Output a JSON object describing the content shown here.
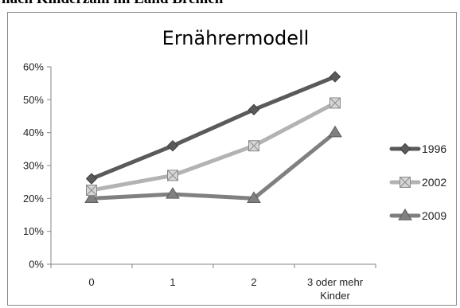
{
  "page": {
    "heading": "nach Kinderzahl im Land Bremen"
  },
  "chart_data": {
    "type": "line",
    "title": "Ernährermodell",
    "categories": [
      [
        "0"
      ],
      [
        "1"
      ],
      [
        "2"
      ],
      [
        "3 oder mehr",
        "Kinder"
      ]
    ],
    "ylim": [
      0,
      0.6
    ],
    "yticks": [
      0,
      0.1,
      0.2,
      0.3,
      0.4,
      0.5,
      0.6
    ],
    "ytick_labels": [
      "0%",
      "10%",
      "20%",
      "30%",
      "40%",
      "50%",
      "60%"
    ],
    "grid": false,
    "legend_position": "right",
    "series": [
      {
        "name": "1996",
        "values": [
          0.26,
          0.36,
          0.47,
          0.57
        ],
        "color": "#5a5a5a",
        "marker": "diamond"
      },
      {
        "name": "2002",
        "values": [
          0.225,
          0.27,
          0.36,
          0.49
        ],
        "color": "#b3b3b3",
        "marker": "square"
      },
      {
        "name": "2009",
        "values": [
          0.2,
          0.213,
          0.2,
          0.4
        ],
        "color": "#808080",
        "marker": "triangle"
      }
    ]
  }
}
